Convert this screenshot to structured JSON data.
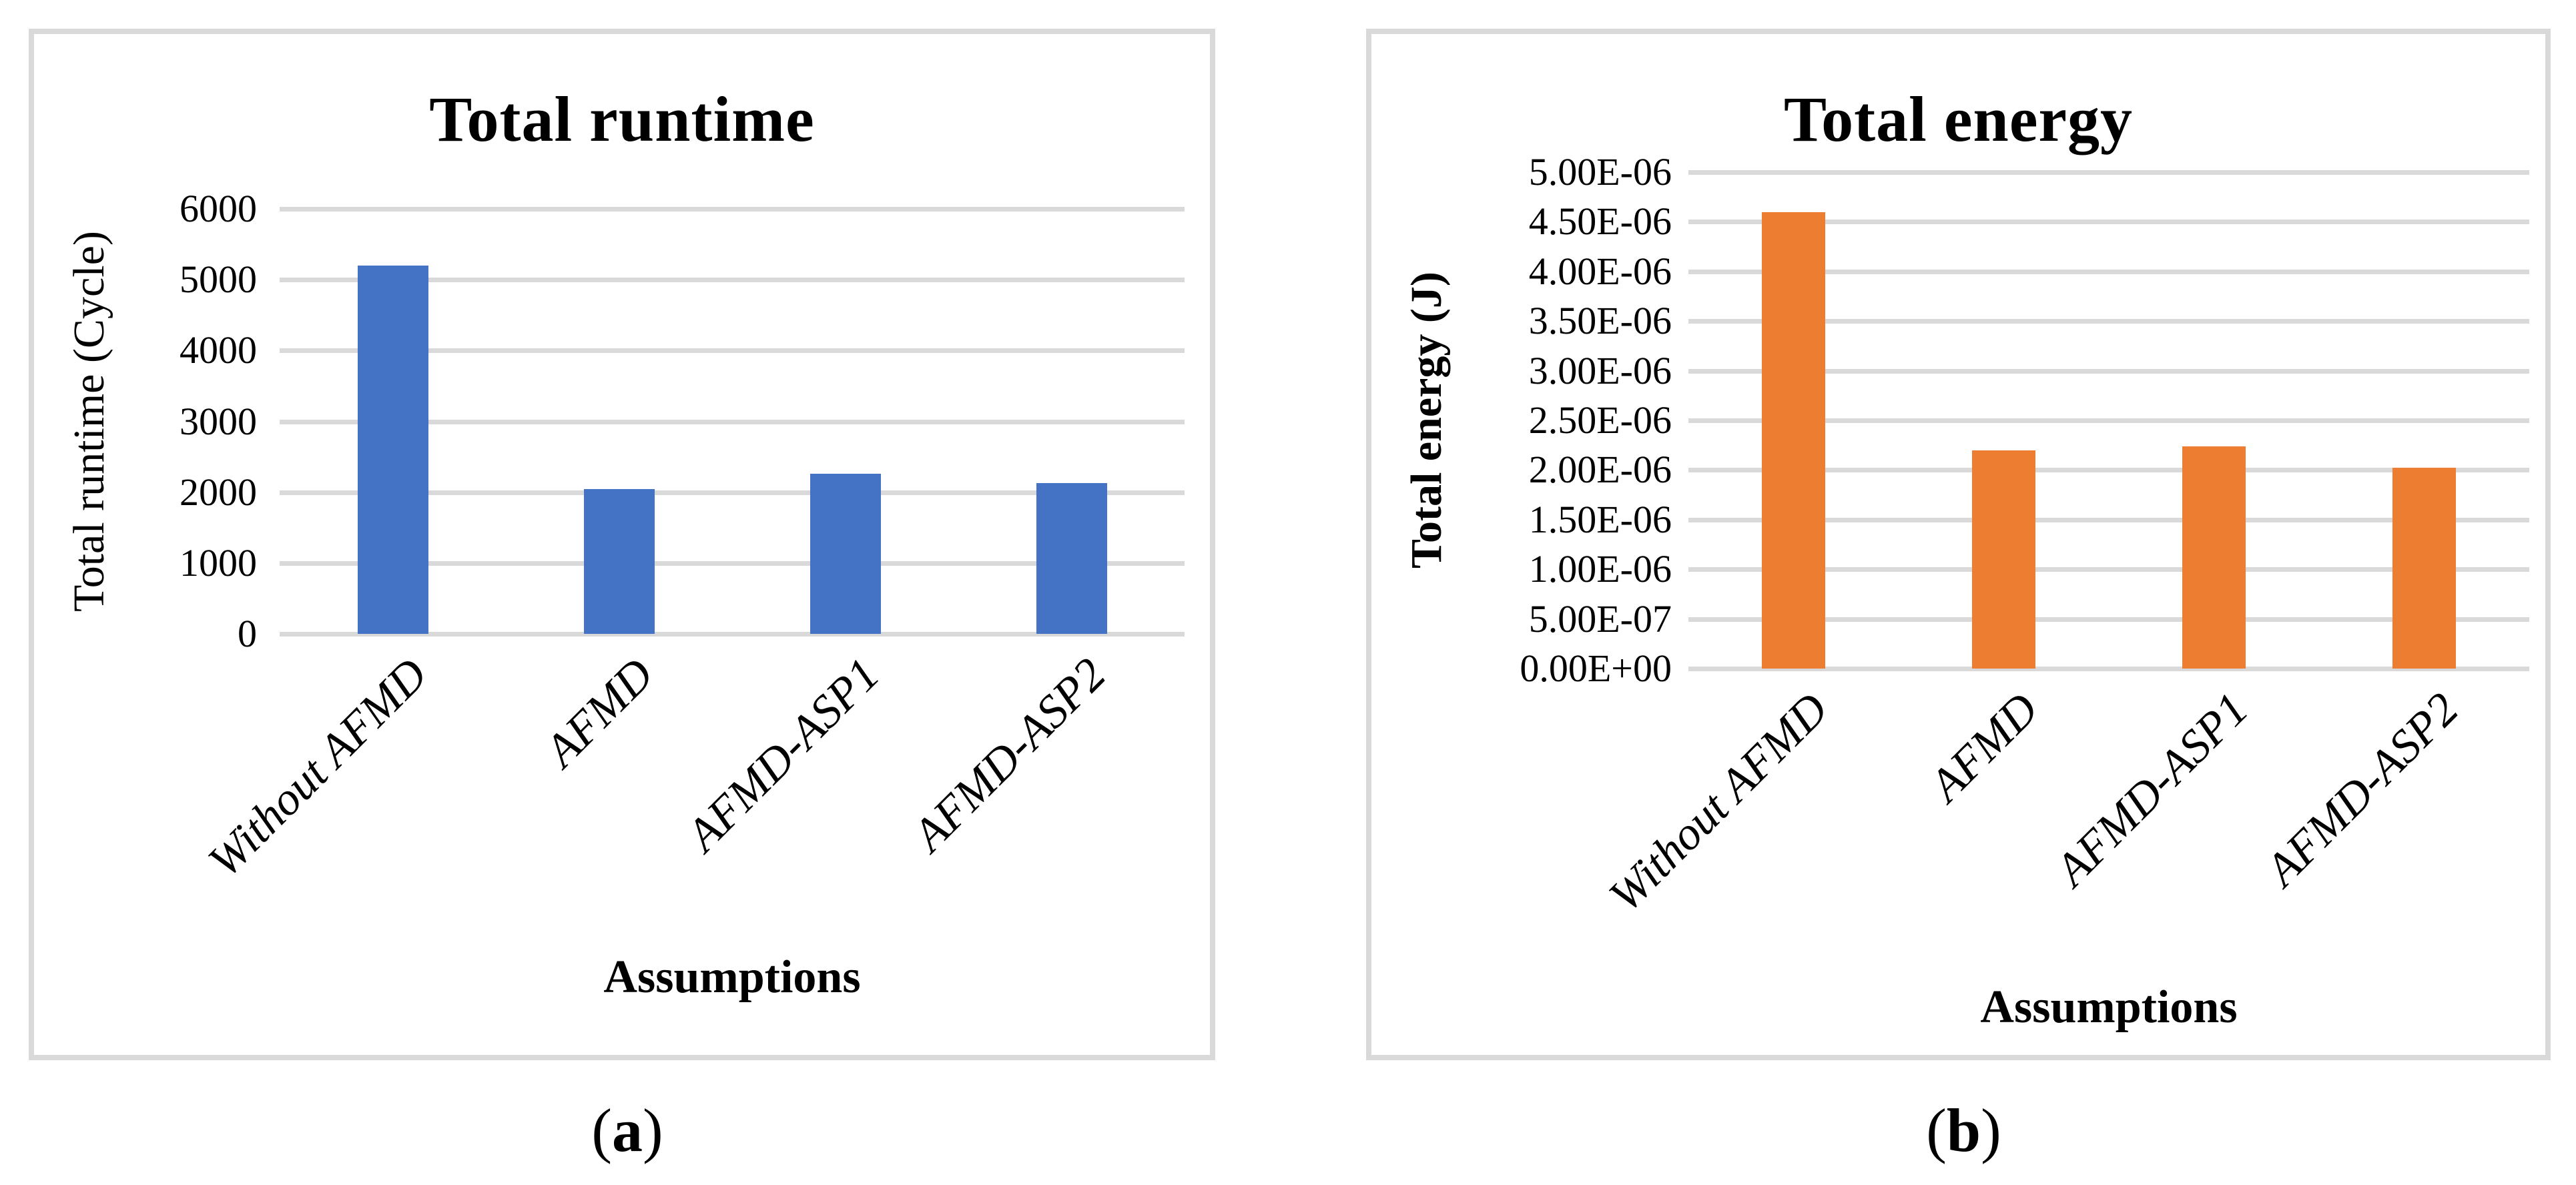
{
  "page": {
    "background_color": "#ffffff",
    "panel_border_color": "#d9d9d9",
    "gridline_color": "#d9d9d9"
  },
  "chart_data": [
    {
      "type": "bar",
      "title": "Total runtime",
      "xlabel": "Assumptions",
      "ylabel": "Total runtime (Cycle)",
      "categories": [
        "Without AFMD",
        "AFMD",
        "AFMD-ASP1",
        "AFMD-ASP2"
      ],
      "values": [
        5200,
        2040,
        2260,
        2130
      ],
      "ylim": [
        0,
        6000
      ],
      "ytick_step": 1000,
      "ytick_labels": [
        "6000",
        "5000",
        "4000",
        "3000",
        "2000",
        "1000",
        "0"
      ],
      "bar_color": "#4472c4",
      "grid": true,
      "legend": "none",
      "caption": {
        "open": "(",
        "letter": "a",
        "close": ")"
      }
    },
    {
      "type": "bar",
      "title": "Total energy",
      "xlabel": "Assumptions",
      "ylabel": "Total energy (J)",
      "categories": [
        "Without AFMD",
        "AFMD",
        "AFMD-ASP1",
        "AFMD-ASP2"
      ],
      "values": [
        4.6e-06,
        2.2e-06,
        2.24e-06,
        2.02e-06
      ],
      "ylim": [
        0,
        5e-06
      ],
      "ytick_step": 5e-07,
      "ytick_labels": [
        "5.00E-06",
        "4.50E-06",
        "4.00E-06",
        "3.50E-06",
        "3.00E-06",
        "2.50E-06",
        "2.00E-06",
        "1.50E-06",
        "1.00E-06",
        "5.00E-07",
        "0.00E+00"
      ],
      "bar_color": "#ed7d31",
      "grid": true,
      "legend": "none",
      "caption": {
        "open": "(",
        "letter": "b",
        "close": ")"
      }
    }
  ]
}
